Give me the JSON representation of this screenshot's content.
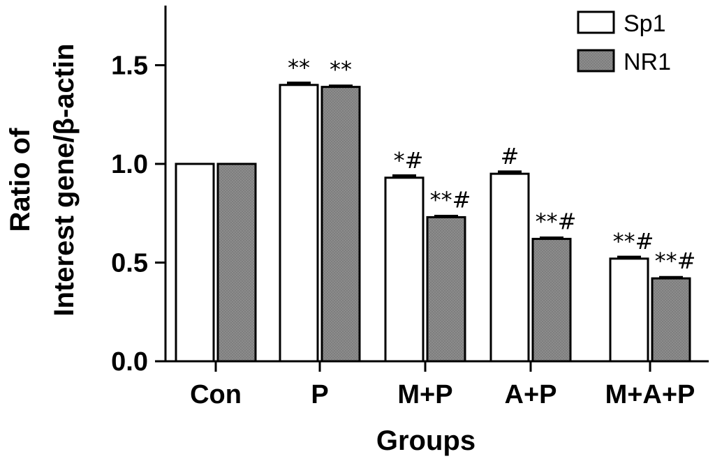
{
  "chart_data": {
    "type": "bar",
    "title": "",
    "xlabel": "Groups",
    "ylabel_line1": "Ratio of",
    "ylabel_line2": "Interest gene/β-actin",
    "ylim": [
      0,
      1.8
    ],
    "yticks": [
      "0.0",
      "0.5",
      "1.0",
      "1.5"
    ],
    "ytick_values": [
      0,
      0.5,
      1.0,
      1.5
    ],
    "categories": [
      "Con",
      "P",
      "M+P",
      "A+P",
      "M+A+P"
    ],
    "series": [
      {
        "name": "Sp1",
        "color": "#ffffff",
        "values": [
          1.0,
          1.4,
          0.93,
          0.95,
          0.52
        ],
        "errors": [
          0.0,
          0.01,
          0.01,
          0.01,
          0.008
        ],
        "annotations": [
          "",
          "**",
          "*#",
          "#",
          "**#"
        ]
      },
      {
        "name": "NR1",
        "color": "#8c8c8c",
        "values": [
          1.0,
          1.39,
          0.73,
          0.62,
          0.42
        ],
        "errors": [
          0.0,
          0.005,
          0.005,
          0.005,
          0.005
        ],
        "annotations": [
          "",
          "**",
          "**#",
          "**#",
          "**#"
        ]
      }
    ],
    "legend_position": "top-right",
    "grid": false
  }
}
